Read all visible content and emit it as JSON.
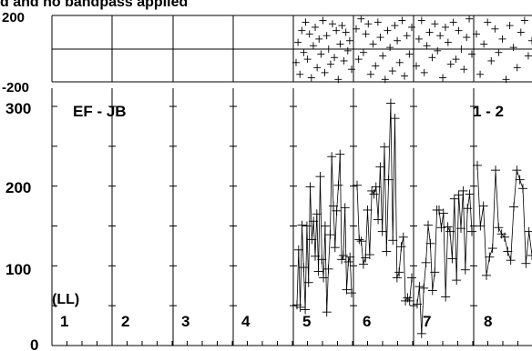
{
  "chart_data": {
    "type": "scatter",
    "title": "d and no bandpass applied",
    "baseline": "EF - JB",
    "polarization": "(LL)",
    "correlator_label": "1 - 2",
    "phase_panel": {
      "ylim": [
        -200,
        200
      ],
      "ticks": [
        "200",
        "-200"
      ]
    },
    "amp_panel": {
      "ylim": [
        0,
        300
      ],
      "ticks": [
        "300",
        "200",
        "100",
        "0"
      ]
    },
    "channels": [
      "1",
      "2",
      "3",
      "4",
      "5",
      "6",
      "7",
      "8"
    ],
    "amplitude": [
      [
        51,
        120,
        48,
        151,
        98,
        45,
        150,
        79,
        199,
        133,
        156,
        112,
        165,
        93,
        212,
        108,
        85,
        150,
        42,
        96,
        139,
        237,
        175,
        123,
        169,
        201,
        240,
        108,
        113,
        173,
        70,
        105,
        111,
        66
      ],
      [
        201,
        133,
        131,
        102,
        110,
        170,
        114,
        194,
        190,
        199,
        158,
        224,
        143,
        249,
        118,
        208,
        304,
        132,
        285,
        85,
        92,
        124,
        136,
        56,
        60,
        56,
        85
      ],
      [
        52,
        74,
        15,
        72,
        104,
        151,
        128,
        69,
        92,
        170,
        170,
        148,
        166,
        61,
        149,
        143,
        109,
        184,
        82,
        189,
        147,
        194,
        95,
        172,
        190,
        143
      ],
      [
        226,
        150,
        175,
        88,
        111,
        122,
        220,
        148,
        140,
        136,
        118,
        107,
        174,
        220,
        208,
        197,
        103,
        143,
        113
      ]
    ],
    "phase": [
      [
        -80,
        40,
        -150,
        110,
        -20,
        160,
        -60,
        90,
        -170,
        20,
        130,
        -110,
        60,
        -30,
        170,
        -140,
        80,
        0,
        -90,
        150,
        -50,
        110,
        -180,
        30,
        140,
        -70,
        100,
        -10,
        50,
        -120
      ],
      [
        120,
        -60,
        180,
        -20,
        90,
        150,
        -150,
        30,
        -100,
        160,
        70,
        -40,
        -180,
        110,
        10,
        -130,
        140,
        50,
        -80,
        170,
        -160,
        80,
        -30,
        130
      ],
      [
        -100,
        60,
        170,
        -140,
        20,
        100,
        -50,
        150,
        -10,
        80,
        -170,
        130,
        40,
        -90,
        160,
        -60,
        110,
        0,
        -120,
        70,
        180,
        -30
      ],
      [
        90,
        -150,
        30,
        160,
        -70,
        120,
        -20,
        60,
        -180,
        140,
        10,
        -110,
        100,
        170,
        -40,
        50
      ]
    ]
  }
}
